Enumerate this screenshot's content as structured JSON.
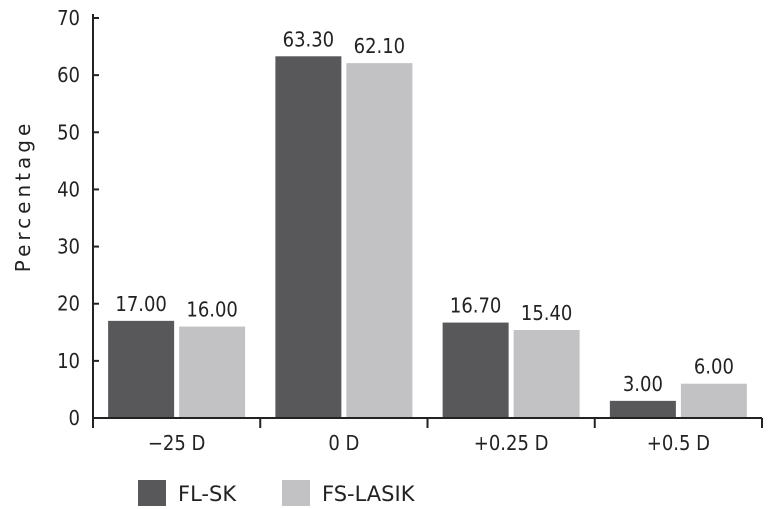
{
  "chart_data": {
    "type": "bar",
    "categories": [
      "−25 D",
      "0 D",
      "+0.25 D",
      "+0.5 D"
    ],
    "series": [
      {
        "name": "FL-SK",
        "values": [
          17.0,
          63.3,
          16.7,
          3.0
        ],
        "labels": [
          "17.00",
          "63.30",
          "16.70",
          "3.00"
        ],
        "color": "#58585a"
      },
      {
        "name": "FS-LASIK",
        "values": [
          16.0,
          62.1,
          15.4,
          6.0
        ],
        "labels": [
          "16.00",
          "62.10",
          "15.40",
          "6.00"
        ],
        "color": "#c2c2c4"
      }
    ],
    "ylabel": "Percentage",
    "ylim": [
      0,
      70
    ],
    "yticks": [
      0,
      10,
      20,
      30,
      40,
      50,
      60,
      70
    ],
    "grid": false,
    "legend_position": "bottom"
  }
}
